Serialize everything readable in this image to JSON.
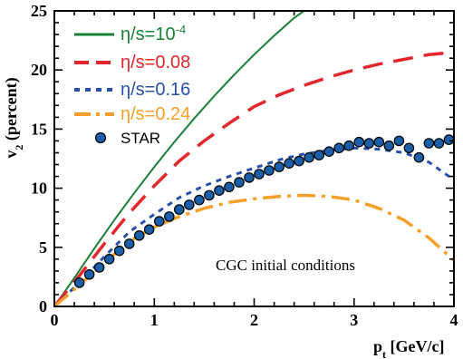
{
  "chart_data": {
    "type": "line",
    "title": "",
    "annotation": "CGC initial conditions",
    "xlabel": "p",
    "xlabel_sub": "t",
    "xlabel_unit": " [GeV/c]",
    "ylabel": "v",
    "ylabel_sub": "2",
    "ylabel_unit": " (percent)",
    "xlim": [
      0,
      4
    ],
    "ylim": [
      0,
      25
    ],
    "xticks": [
      0,
      1,
      2,
      3,
      4
    ],
    "yticks": [
      0,
      5,
      10,
      15,
      20,
      25
    ],
    "grid": false,
    "legend_position": "top-left",
    "legend": [
      {
        "label_prefix": "η/s=10",
        "label_sup": "-4",
        "color": "#1a7f37"
      },
      {
        "label_prefix": "η/s=0.08",
        "label_sup": "",
        "color": "#e3262b"
      },
      {
        "label_prefix": "η/s=0.16",
        "label_sup": "",
        "color": "#2850a8"
      },
      {
        "label_prefix": "η/s=0.24",
        "label_sup": "",
        "color": "#f5a02a"
      },
      {
        "label_prefix": "STAR",
        "label_sup": "",
        "color": "#1a5fa8"
      }
    ],
    "series": [
      {
        "color": "#1a7f37",
        "style": "solid",
        "x": [
          0,
          0.2,
          0.4,
          0.6,
          0.8,
          1.0,
          1.2,
          1.4,
          1.6,
          1.8,
          2.0,
          2.2,
          2.4,
          2.6
        ],
        "y": [
          0,
          2.4,
          4.9,
          7.3,
          9.6,
          11.8,
          13.9,
          15.9,
          17.8,
          19.6,
          21.3,
          22.9,
          24.4,
          25.6
        ]
      },
      {
        "color": "#e3262b",
        "style": "dash",
        "x": [
          0,
          0.25,
          0.5,
          0.75,
          1.0,
          1.25,
          1.5,
          1.75,
          2.0,
          2.25,
          2.5,
          2.75,
          3.0,
          3.25,
          3.5,
          3.75,
          4.0
        ],
        "y": [
          0,
          2.6,
          5.3,
          7.9,
          10.2,
          12.3,
          14.0,
          15.5,
          16.9,
          17.9,
          18.7,
          19.4,
          20.0,
          20.5,
          20.9,
          21.3,
          21.5
        ]
      },
      {
        "color": "#2850a8",
        "style": "dot",
        "x": [
          0,
          0.25,
          0.5,
          0.75,
          1.0,
          1.25,
          1.5,
          1.75,
          2.0,
          2.25,
          2.5,
          2.75,
          3.0,
          3.25,
          3.5,
          3.75,
          4.0
        ],
        "y": [
          0,
          2.0,
          4.2,
          6.3,
          7.8,
          9.2,
          10.2,
          11.0,
          11.7,
          12.4,
          12.9,
          13.2,
          13.4,
          13.3,
          13.0,
          12.2,
          10.7
        ]
      },
      {
        "color": "#f5a02a",
        "style": "dashdot",
        "x": [
          0,
          0.25,
          0.5,
          0.75,
          1.0,
          1.25,
          1.5,
          1.75,
          2.0,
          2.25,
          2.5,
          2.75,
          3.0,
          3.25,
          3.5,
          3.75,
          4.0
        ],
        "y": [
          0,
          1.8,
          3.7,
          5.5,
          6.7,
          7.6,
          8.3,
          8.8,
          9.1,
          9.3,
          9.4,
          9.3,
          9.0,
          8.3,
          7.3,
          5.8,
          3.9
        ]
      }
    ],
    "points": {
      "color": "#1a5fa8",
      "x": [
        0.25,
        0.35,
        0.45,
        0.55,
        0.65,
        0.75,
        0.85,
        0.95,
        1.05,
        1.15,
        1.25,
        1.35,
        1.45,
        1.55,
        1.65,
        1.75,
        1.85,
        1.95,
        2.05,
        2.15,
        2.25,
        2.35,
        2.45,
        2.55,
        2.65,
        2.75,
        2.85,
        2.95,
        3.05,
        3.15,
        3.25,
        3.35,
        3.45,
        3.55,
        3.65,
        3.75,
        3.85,
        3.95
      ],
      "y": [
        2.0,
        2.7,
        3.3,
        4.0,
        4.7,
        5.3,
        6.0,
        6.5,
        7.2,
        7.6,
        8.2,
        8.6,
        9.0,
        9.4,
        9.8,
        10.1,
        10.5,
        10.9,
        11.2,
        11.5,
        11.8,
        12.1,
        12.3,
        12.6,
        12.8,
        13.1,
        13.4,
        13.6,
        13.9,
        13.8,
        13.9,
        13.6,
        14.0,
        13.4,
        12.6,
        13.8,
        13.8,
        14.1
      ]
    }
  }
}
